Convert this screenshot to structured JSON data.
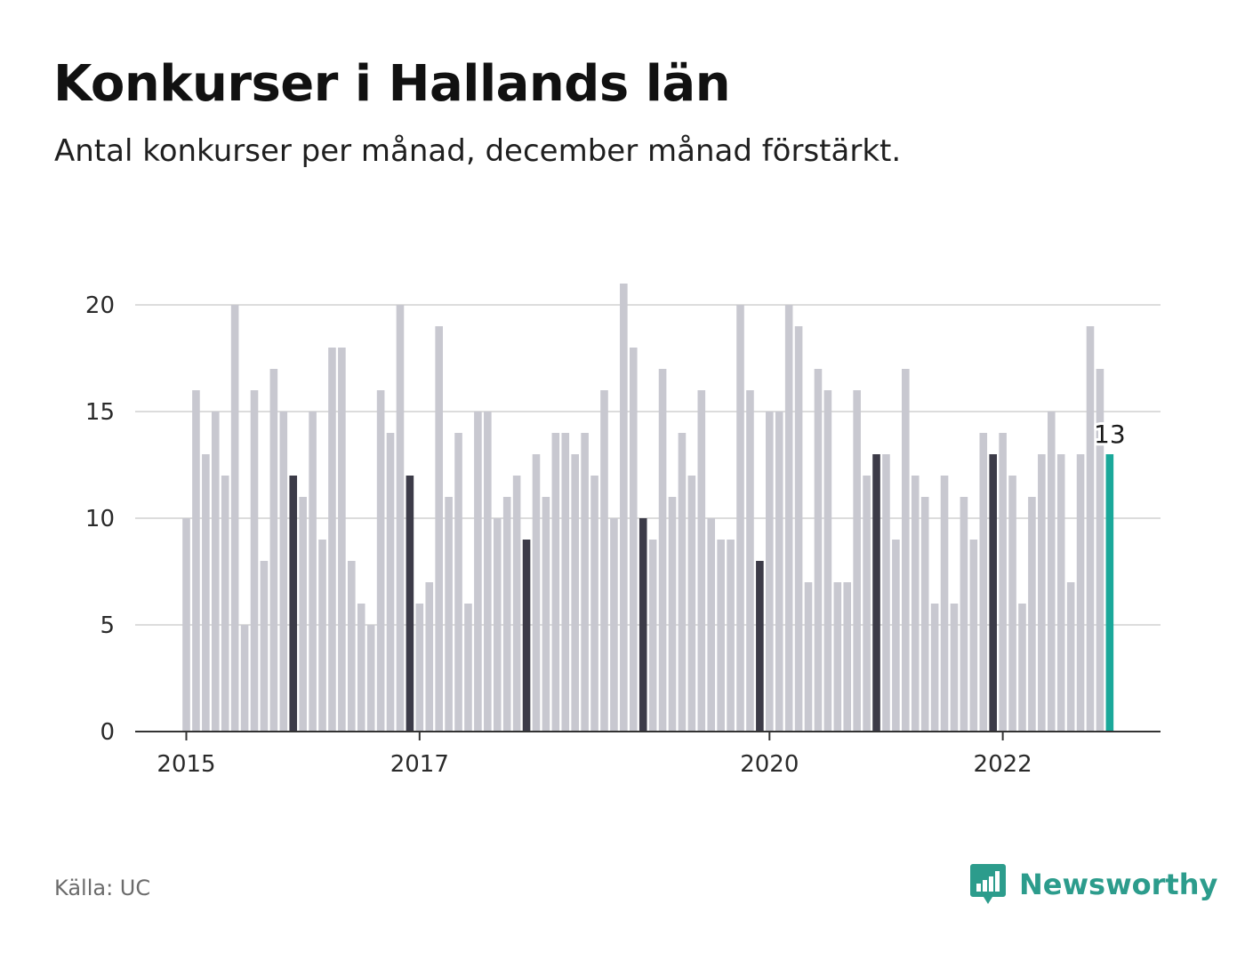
{
  "title": "Konkurser i Hallands län",
  "subtitle": "Antal konkurser per månad, december månad förstärkt.",
  "source": "Källa: UC",
  "logo": {
    "text": "Newsworthy",
    "icon": "newsworthy-bar-chart-icon"
  },
  "colors": {
    "bar": "#c8c8d0",
    "december_bar": "#3c3b48",
    "highlight_bar": "#1aa89a",
    "gridline": "#dcdcdc",
    "axis": "#333333",
    "brand": "#2c9c8c"
  },
  "chart_data": {
    "type": "bar",
    "title": "Konkurser i Hallands län",
    "subtitle": "Antal konkurser per månad, december månad förstärkt.",
    "xlabel": "",
    "ylabel": "",
    "ylim": [
      0,
      21
    ],
    "yticks": [
      0,
      5,
      10,
      15,
      20
    ],
    "xticks": [
      {
        "label": "2015",
        "index": 0
      },
      {
        "label": "2017",
        "index": 24
      },
      {
        "label": "2020",
        "index": 60
      },
      {
        "label": "2022",
        "index": 84
      }
    ],
    "start": "2015-01",
    "highlight_label": "13",
    "grid": true,
    "values": [
      10,
      16,
      13,
      15,
      12,
      20,
      5,
      16,
      8,
      17,
      15,
      12,
      11,
      15,
      9,
      18,
      18,
      8,
      6,
      5,
      16,
      14,
      20,
      12,
      6,
      7,
      19,
      11,
      14,
      6,
      15,
      15,
      10,
      11,
      12,
      9,
      13,
      11,
      14,
      14,
      13,
      14,
      12,
      16,
      10,
      21,
      18,
      10,
      9,
      17,
      11,
      14,
      12,
      16,
      10,
      9,
      9,
      20,
      16,
      8,
      15,
      15,
      20,
      19,
      7,
      17,
      16,
      7,
      7,
      16,
      12,
      13,
      13,
      9,
      17,
      12,
      11,
      6,
      12,
      6,
      11,
      9,
      14,
      13,
      14,
      12,
      6,
      11,
      13,
      15,
      13,
      7,
      13,
      19,
      17,
      13
    ],
    "december_indices": [
      11,
      23,
      35,
      47,
      59,
      71,
      83
    ],
    "highlight_index": 95
  }
}
